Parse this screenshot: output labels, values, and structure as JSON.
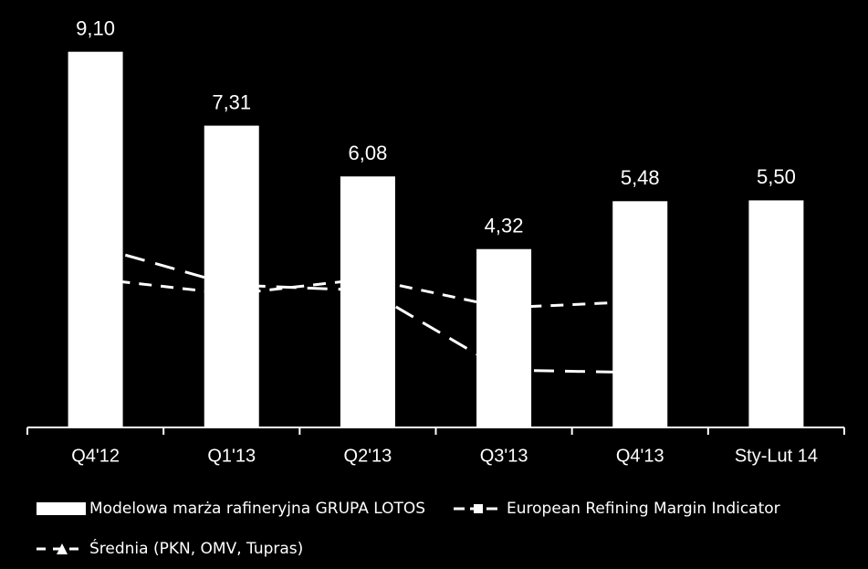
{
  "chart_data": {
    "type": "bar",
    "categories": [
      "Q4'12",
      "Q1'13",
      "Q2'13",
      "Q3'13",
      "Q4'13",
      "Sty-Lut 14"
    ],
    "ylim": [
      0,
      10
    ],
    "series": [
      {
        "name": "Modelowa marża rafineryjna GRUPA LOTOS",
        "type": "bar",
        "color": "#ffffff",
        "values": [
          9.1,
          7.31,
          6.08,
          4.32,
          5.48,
          5.5
        ],
        "value_labels": [
          "9,10",
          "7,31",
          "6,08",
          "4,32",
          "5,48",
          "5,50"
        ]
      },
      {
        "name": "European Refining Margin Indicator",
        "type": "line",
        "color": "#ffffff",
        "values": [
          4.38,
          3.45,
          3.32,
          1.39,
          1.33,
          null
        ]
      },
      {
        "name": "Średnia (PKN, OMV, Tupras)",
        "type": "line",
        "color": "#ffffff",
        "values": [
          3.6,
          3.23,
          3.6,
          2.9,
          3.05,
          null
        ]
      }
    ]
  }
}
